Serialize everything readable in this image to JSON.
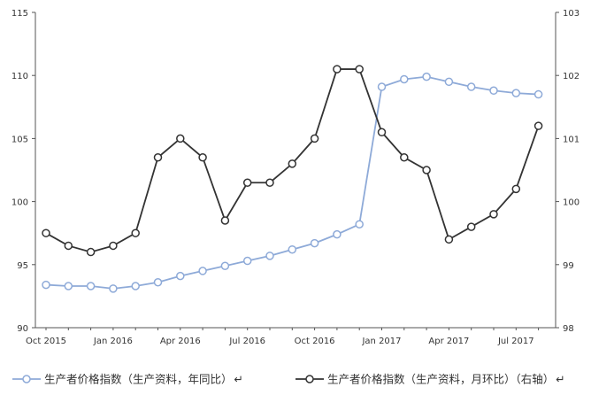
{
  "chart_data": {
    "type": "line",
    "x": [
      "2015-10",
      "2015-11",
      "2015-12",
      "2016-01",
      "2016-02",
      "2016-03",
      "2016-04",
      "2016-05",
      "2016-06",
      "2016-07",
      "2016-08",
      "2016-09",
      "2016-10",
      "2016-11",
      "2016-12",
      "2017-01",
      "2017-02",
      "2017-03",
      "2017-04",
      "2017-05",
      "2017-06",
      "2017-07",
      "2017-08"
    ],
    "x_tick_labels": [
      {
        "at": "2015-10",
        "label": "Oct 2015"
      },
      {
        "at": "2016-01",
        "label": "Jan 2016"
      },
      {
        "at": "2016-04",
        "label": "Apr 2016"
      },
      {
        "at": "2016-07",
        "label": "Jul 2016"
      },
      {
        "at": "2016-10",
        "label": "Oct 2016"
      },
      {
        "at": "2017-01",
        "label": "Jan 2017"
      },
      {
        "at": "2017-04",
        "label": "Apr 2017"
      },
      {
        "at": "2017-07",
        "label": "Jul 2017"
      }
    ],
    "y_left": {
      "range": [
        90,
        115
      ],
      "ticks": [
        "90",
        "95",
        "100",
        "105",
        "110",
        "115"
      ]
    },
    "y_right": {
      "range": [
        98,
        103
      ],
      "ticks": [
        "98",
        "99",
        "100",
        "101",
        "102",
        "103"
      ]
    },
    "grid": false,
    "legend_position": "bottom",
    "series": [
      {
        "name": "生产者价格指数（生产资料，年同比）",
        "axis": "left",
        "color": "#8eaad8",
        "values": [
          93.4,
          93.3,
          93.3,
          93.1,
          93.3,
          93.6,
          94.1,
          94.5,
          94.9,
          95.3,
          95.7,
          96.2,
          96.7,
          97.4,
          98.2,
          109.1,
          109.7,
          109.9,
          109.5,
          109.1,
          108.8,
          108.6,
          108.5
        ]
      },
      {
        "name": "生产者价格指数（生产资料，月环比）（右轴）",
        "axis": "right",
        "color": "#333333",
        "values": [
          99.5,
          99.3,
          99.2,
          99.3,
          99.5,
          100.7,
          101.0,
          100.7,
          99.7,
          100.3,
          100.3,
          100.6,
          101.0,
          102.1,
          102.1,
          101.1,
          100.7,
          100.5,
          99.4,
          99.6,
          99.8,
          100.2,
          101.2
        ]
      }
    ]
  },
  "legend": {
    "items": [
      {
        "label": "生产者价格指数（生产资料，年同比）",
        "suffix": "↵"
      },
      {
        "label": "生产者价格指数（生产资料，月环比）（右轴）",
        "suffix": "↵"
      }
    ]
  }
}
